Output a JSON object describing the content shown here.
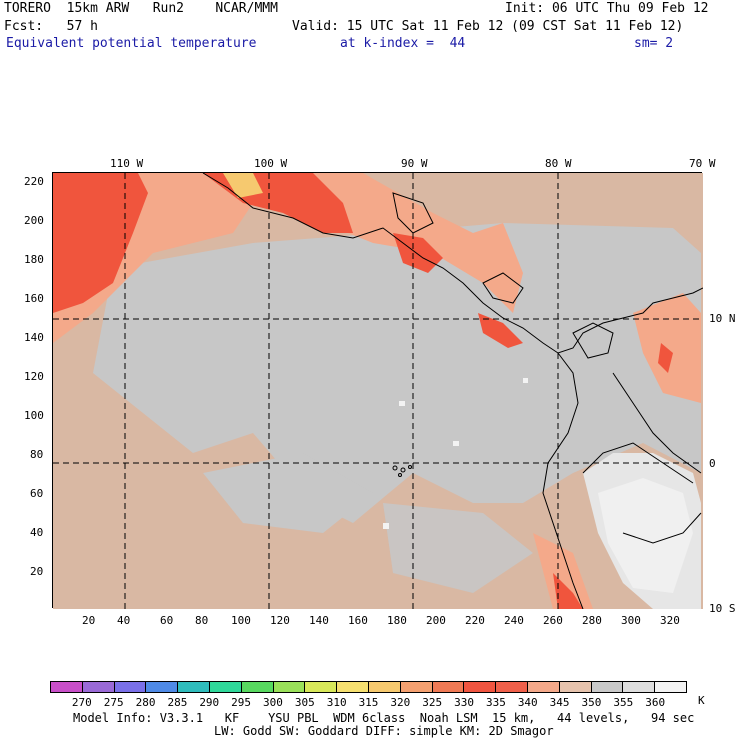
{
  "header": {
    "line1_left": "TORERO  15km ARW   Run2    NCAR/MMM",
    "line1_right": "Init: 06 UTC Thu 09 Feb 12",
    "line2_left": "Fcst:   57 h",
    "line2_right": "Valid: 15 UTC Sat 11 Feb 12 (09 CST Sat 11 Feb 12)",
    "line3_field": "Equivalent potential temperature",
    "line3_level": "at k-index =  44",
    "line3_smooth": "sm= 2"
  },
  "map": {
    "top_longitude_labels": [
      "110 W",
      "100 W",
      "90 W",
      "80 W",
      "70 W"
    ],
    "right_latitude_labels": [
      "10 N",
      "0",
      "10 S"
    ],
    "left_axis_ticks": [
      "220",
      "200",
      "180",
      "160",
      "140",
      "120",
      "100",
      "80",
      "60",
      "40",
      "20"
    ],
    "bottom_axis_ticks": [
      "20",
      "40",
      "60",
      "80",
      "100",
      "120",
      "140",
      "160",
      "180",
      "200",
      "220",
      "240",
      "260",
      "280",
      "300",
      "320"
    ],
    "grid_lines": "dashed",
    "colors": {
      "background_field": "#d9b8a3",
      "gray_field": "#c7c7c7",
      "hot_field": "#f0553d",
      "warm_field": "#f4a98a",
      "white_field": "#f0f0f0",
      "yellow_field": "#f6c96f",
      "coastline": "#000000"
    }
  },
  "colorbar": {
    "colors": [
      "#c84fc8",
      "#9a6ad6",
      "#7a70e8",
      "#4f8ae6",
      "#2fbcbc",
      "#2fd89a",
      "#58d860",
      "#9ae05a",
      "#d8e85a",
      "#f6e070",
      "#f6c96f",
      "#f4a070",
      "#f07a55",
      "#f05540",
      "#f0604a",
      "#f4a98a",
      "#e6c3ad",
      "#c9c9c9",
      "#dedede",
      "#f3f3f3"
    ],
    "labels": [
      "270",
      "275",
      "280",
      "285",
      "290",
      "295",
      "300",
      "305",
      "310",
      "315",
      "320",
      "325",
      "330",
      "335",
      "340",
      "345",
      "350",
      "355",
      "360"
    ],
    "unit": "K"
  },
  "footer": {
    "line1": "Model Info: V3.3.1   KF    YSU PBL  WDM 6class  Noah LSM  15 km,   44 levels,   94 sec",
    "line2": "LW: Godd SW: Goddard DIFF: simple KM: 2D Smagor"
  }
}
